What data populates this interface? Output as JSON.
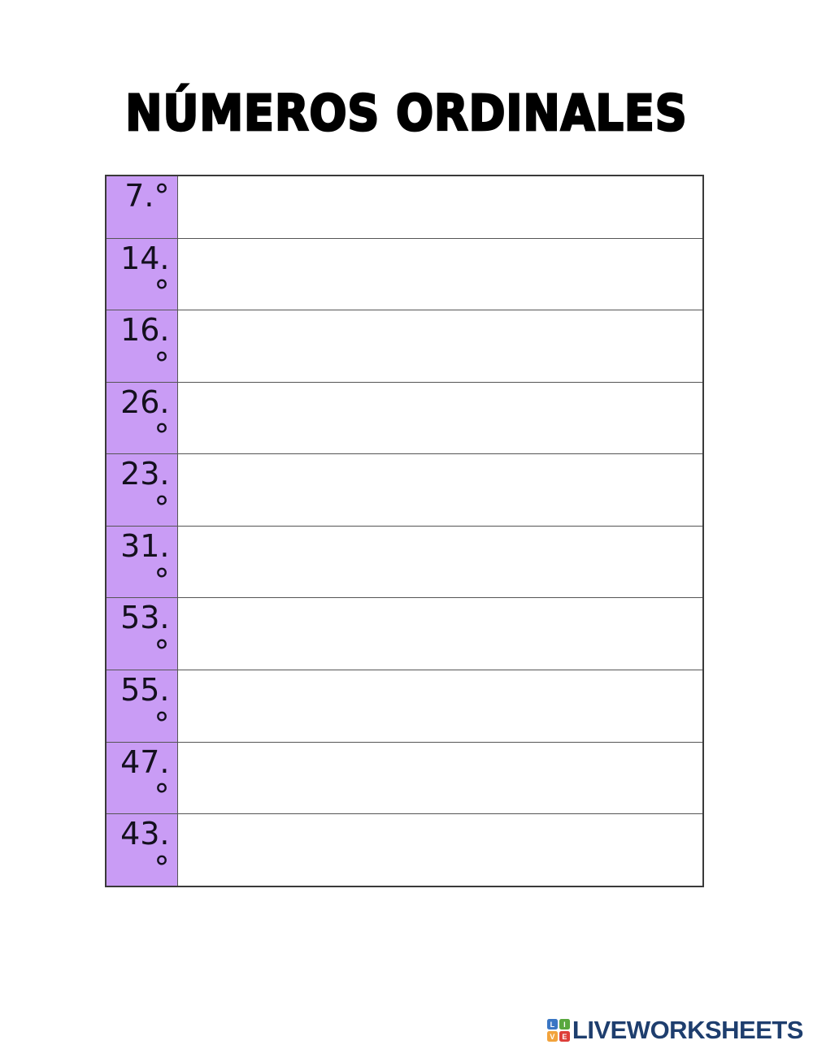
{
  "page": {
    "title": "NÚMEROS ORDINALES"
  },
  "worksheet": {
    "ordinal_cell_bg": "#c99cf5",
    "border_color": "#555555",
    "rows": [
      {
        "ordinal": "7.°",
        "answer": ""
      },
      {
        "ordinal": "14.°",
        "answer": ""
      },
      {
        "ordinal": "16.°",
        "answer": ""
      },
      {
        "ordinal": "26.°",
        "answer": ""
      },
      {
        "ordinal": "23.°",
        "answer": ""
      },
      {
        "ordinal": "31.°",
        "answer": ""
      },
      {
        "ordinal": "53.°",
        "answer": ""
      },
      {
        "ordinal": "55.°",
        "answer": ""
      },
      {
        "ordinal": "47.°",
        "answer": ""
      },
      {
        "ordinal": "43.°",
        "answer": ""
      }
    ]
  },
  "footer": {
    "brand": "LIVEWORKSHEETS",
    "brand_color": "#1e3e6e",
    "logo_squares": [
      {
        "letter": "L",
        "color": "#3a76c4"
      },
      {
        "letter": "I",
        "color": "#59a83f"
      },
      {
        "letter": "V",
        "color": "#f2a33c"
      },
      {
        "letter": "E",
        "color": "#dd3f3a"
      }
    ]
  }
}
